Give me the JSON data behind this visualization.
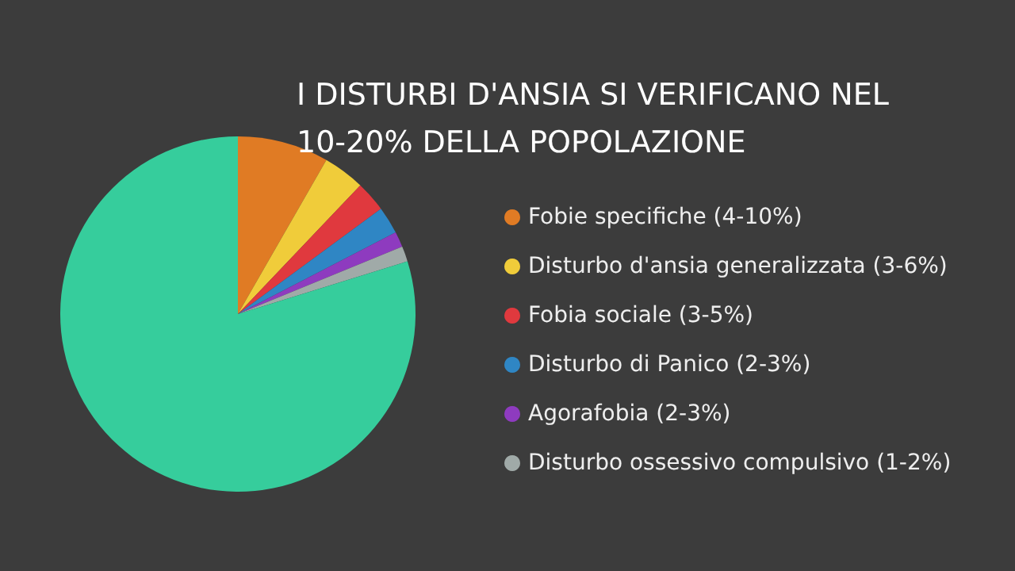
{
  "chart_data": {
    "type": "pie",
    "title": "I DISTURBI D'ANSIA SI VERIFICANO NEL 10-20% DELLA POPOLAZIONE",
    "categories": [
      "Fobie specifiche (4-10%)",
      "Disturbo d'ansia generalizzata (3-6%)",
      "Fobia sociale (3-5%)",
      "Disturbo di Panico (2-3%)",
      "Agorafobia (2-3%)",
      "Disturbo ossessivo compulsivo (1-2%)",
      null
    ],
    "values": [
      8.3,
      3.8,
      2.8,
      2.5,
      1.4,
      1.4,
      79.8
    ],
    "colors": [
      "#e07b24",
      "#f0cc3a",
      "#e0393e",
      "#2f86c4",
      "#8e3bbf",
      "#a0aaa8",
      "#36cd9c"
    ],
    "legend": "right"
  }
}
